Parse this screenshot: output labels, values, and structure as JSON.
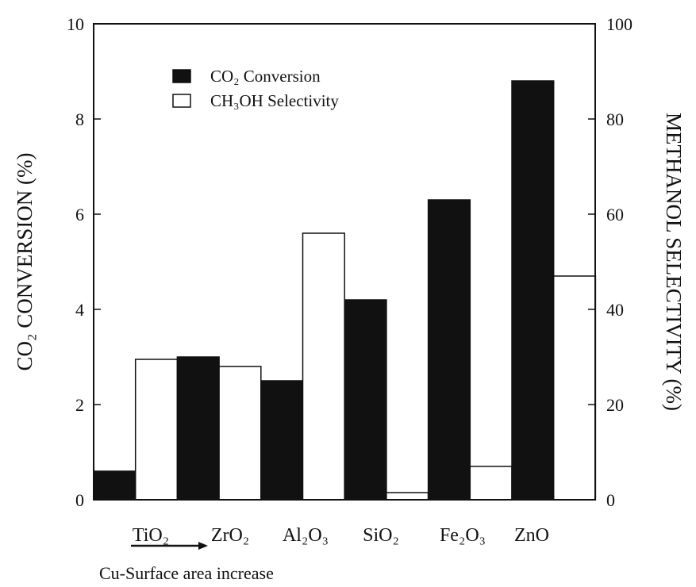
{
  "chart_data": {
    "type": "bar",
    "categories": [
      "TiO₂",
      "ZrO₂",
      "Al₂O₃",
      "SiO₂",
      "Fe₂O₃",
      "ZnO"
    ],
    "series": [
      {
        "name": "CO₂ Conversion",
        "axis": "left",
        "fill": "#111111",
        "values": [
          0.6,
          3.0,
          2.5,
          4.2,
          6.3,
          8.8
        ]
      },
      {
        "name": "CH₃OH Selectivity",
        "axis": "right",
        "fill": "#ffffff",
        "values": [
          29.5,
          28.0,
          56.0,
          1.5,
          7.0,
          47.0
        ]
      }
    ],
    "ylabel_left": "CO₂ CONVERSION (%)",
    "ylabel_right": "METHANOL SELECTIVITY (%)",
    "ylim_left": [
      0,
      10
    ],
    "ylim_right": [
      0,
      100
    ],
    "yticks_left": [
      "0",
      "2",
      "4",
      "6",
      "8",
      "10"
    ],
    "yticks_right": [
      "0",
      "20",
      "40",
      "60",
      "80",
      "100"
    ],
    "grid": false,
    "legend_position": "top-left",
    "annotation": "Cu-Surface area increase"
  }
}
